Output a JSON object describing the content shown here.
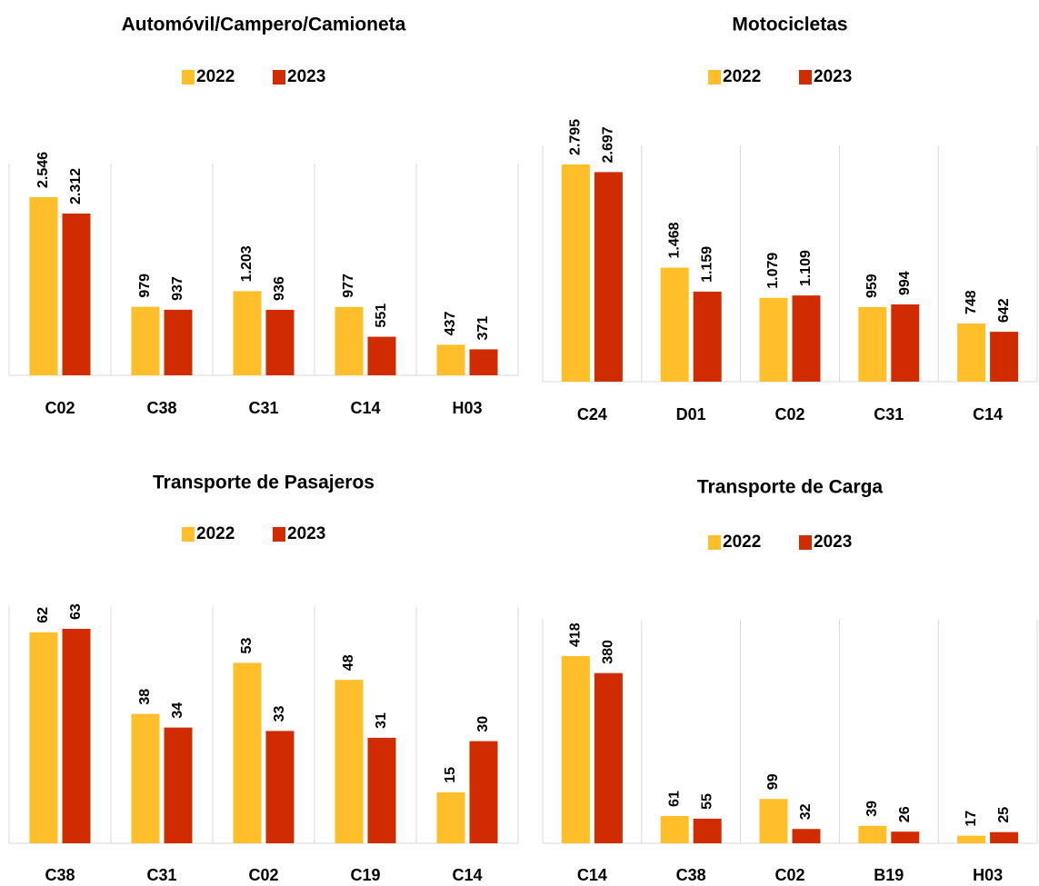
{
  "chart_data": [
    {
      "type": "bar",
      "title": "Automóvil/Campero/Camioneta",
      "categories": [
        "C02",
        "C38",
        "C31",
        "C14",
        "H03"
      ],
      "series": [
        {
          "name": "2022",
          "color": "#FFBF2B",
          "values": [
            2546,
            979,
            1203,
            977,
            437
          ],
          "value_labels": [
            "2.546",
            "979",
            "1.203",
            "977",
            "437"
          ]
        },
        {
          "name": "2023",
          "color": "#D12B00",
          "values": [
            2312,
            937,
            936,
            551,
            371
          ],
          "value_labels": [
            "2.312",
            "937",
            "936",
            "551",
            "371"
          ]
        }
      ]
    },
    {
      "type": "bar",
      "title": "Motocicletas",
      "categories": [
        "C24",
        "D01",
        "C02",
        "C31",
        "C14"
      ],
      "series": [
        {
          "name": "2022",
          "color": "#FFBF2B",
          "values": [
            2795,
            1468,
            1079,
            959,
            748
          ],
          "value_labels": [
            "2.795",
            "1.468",
            "1.079",
            "959",
            "748"
          ]
        },
        {
          "name": "2023",
          "color": "#D12B00",
          "values": [
            2697,
            1159,
            1109,
            994,
            642
          ],
          "value_labels": [
            "2.697",
            "1.159",
            "1.109",
            "994",
            "642"
          ]
        }
      ]
    },
    {
      "type": "bar",
      "title": "Transporte de Pasajeros",
      "categories": [
        "C38",
        "C31",
        "C02",
        "C19",
        "C14"
      ],
      "series": [
        {
          "name": "2022",
          "color": "#FFBF2B",
          "values": [
            62,
            38,
            53,
            48,
            15
          ]
        },
        {
          "name": "2023",
          "color": "#D12B00",
          "values": [
            63,
            34,
            33,
            31,
            30
          ]
        }
      ]
    },
    {
      "type": "bar",
      "title": "Transporte de Carga",
      "categories": [
        "C14",
        "C38",
        "C02",
        "B19",
        "H03"
      ],
      "series": [
        {
          "name": "2022",
          "color": "#FFBF2B",
          "values": [
            418,
            61,
            99,
            39,
            17
          ]
        },
        {
          "name": "2023",
          "color": "#D12B00",
          "values": [
            380,
            55,
            32,
            26,
            25
          ]
        }
      ]
    }
  ]
}
